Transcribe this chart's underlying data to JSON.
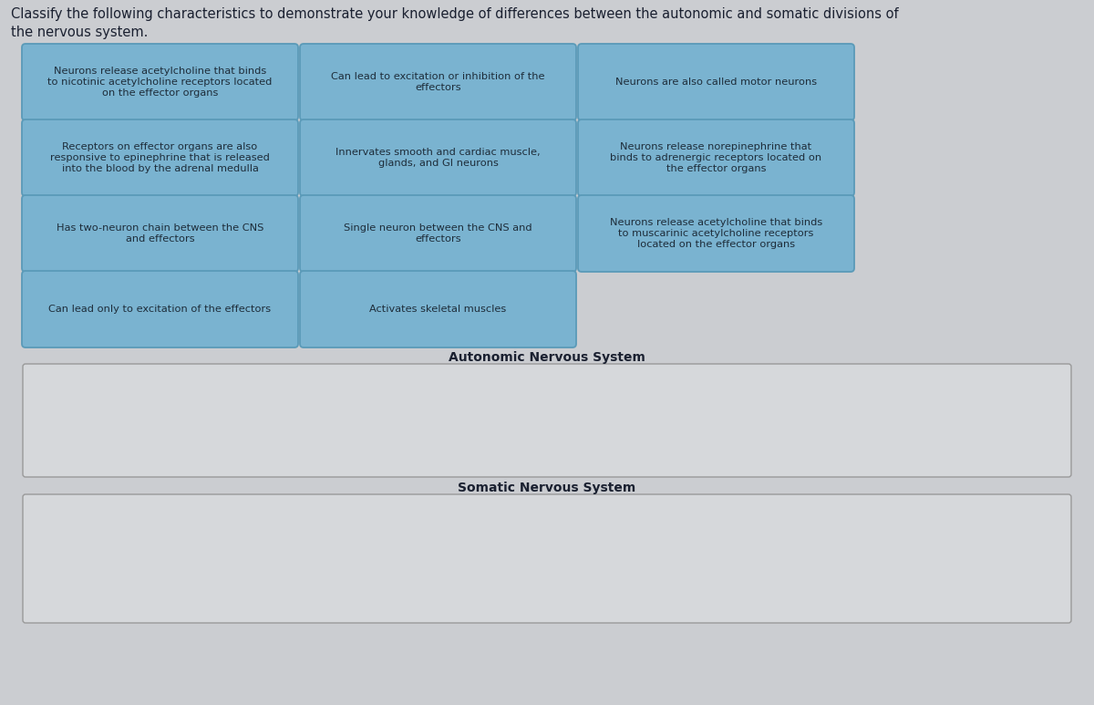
{
  "title": "Classify the following characteristics to demonstrate your knowledge of differences between the autonomic and somatic divisions of\nthe nervous system.",
  "title_fontsize": 10.5,
  "bg_color": "#cbcdd1",
  "card_bg": "#7ab3d0",
  "card_border": "#5a9ab8",
  "card_text_color": "#1e2d3a",
  "card_fontsize": 8.2,
  "drop_box_bg": "#d6d8db",
  "drop_box_border": "#999999",
  "autonomic_label": "Autonomic Nervous System",
  "somatic_label": "Somatic Nervous System",
  "label_fontsize": 10,
  "cards": [
    [
      "Neurons release acetylcholine that binds\nto nicotinic acetylcholine receptors located\non the effector organs",
      0,
      0
    ],
    [
      "Can lead to excitation or inhibition of the\neffectors",
      1,
      0
    ],
    [
      "Neurons are also called motor neurons",
      2,
      0
    ],
    [
      "Receptors on effector organs are also\nresponsive to epinephrine that is released\ninto the blood by the adrenal medulla",
      0,
      1
    ],
    [
      "Innervates smooth and cardiac muscle,\nglands, and GI neurons",
      1,
      1
    ],
    [
      "Neurons release norepinephrine that\nbinds to adrenergic receptors located on\nthe effector organs",
      2,
      1
    ],
    [
      "Has two-neuron chain between the CNS\nand effectors",
      0,
      2
    ],
    [
      "Single neuron between the CNS and\neffectors",
      1,
      2
    ],
    [
      "Neurons release acetylcholine that binds\nto muscarinic acetylcholine receptors\nlocated on the effector organs",
      2,
      2
    ],
    [
      "Can lead only to excitation of the effectors",
      0,
      3
    ],
    [
      "Activates skeletal muscles",
      1,
      3
    ]
  ]
}
